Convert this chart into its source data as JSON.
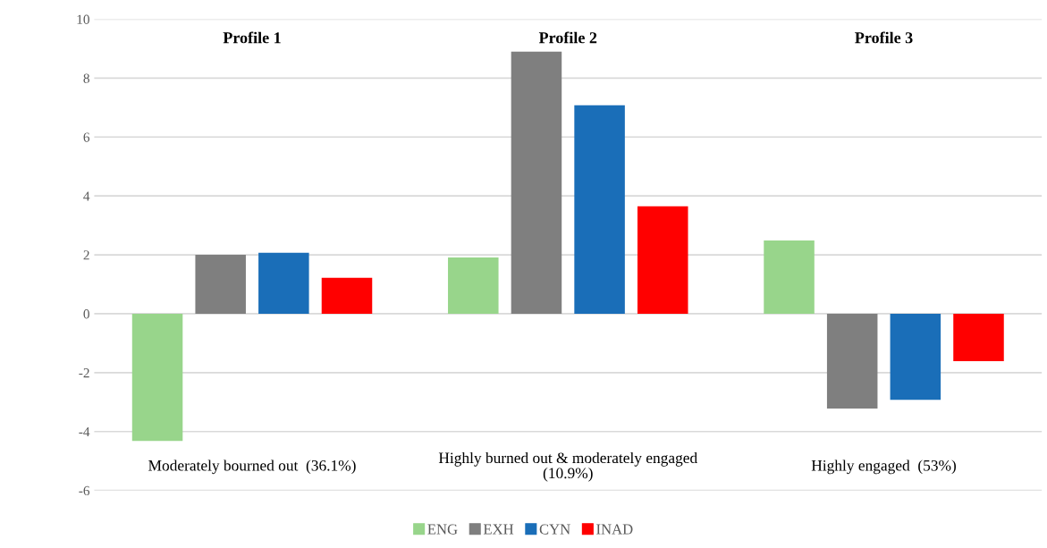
{
  "chart_data": {
    "type": "bar",
    "categories": [
      "Profile 1",
      "Profile 2",
      "Profile 3"
    ],
    "series": [
      {
        "name": "ENG",
        "color": "#98d58b",
        "values": [
          -4.32,
          1.91,
          2.49
        ]
      },
      {
        "name": "EXH",
        "color": "#7f7f7f",
        "values": [
          2.0,
          8.9,
          -3.22
        ]
      },
      {
        "name": "CYN",
        "color": "#1a6eb8",
        "values": [
          2.07,
          7.08,
          -2.92
        ]
      },
      {
        "name": "INAD",
        "color": "#ff0000",
        "values": [
          1.22,
          3.65,
          -1.61
        ]
      }
    ],
    "ylim": [
      -6,
      10
    ],
    "yticks": [
      -6,
      -4,
      -2,
      0,
      2,
      4,
      6,
      8,
      10
    ],
    "grid": "y",
    "legend": "bottom",
    "annotations": [
      "Moderately bourned out  (36.1%)",
      "Highly burned out & moderately engaged\n(10.9%)",
      "Highly engaged  (53%)"
    ]
  }
}
